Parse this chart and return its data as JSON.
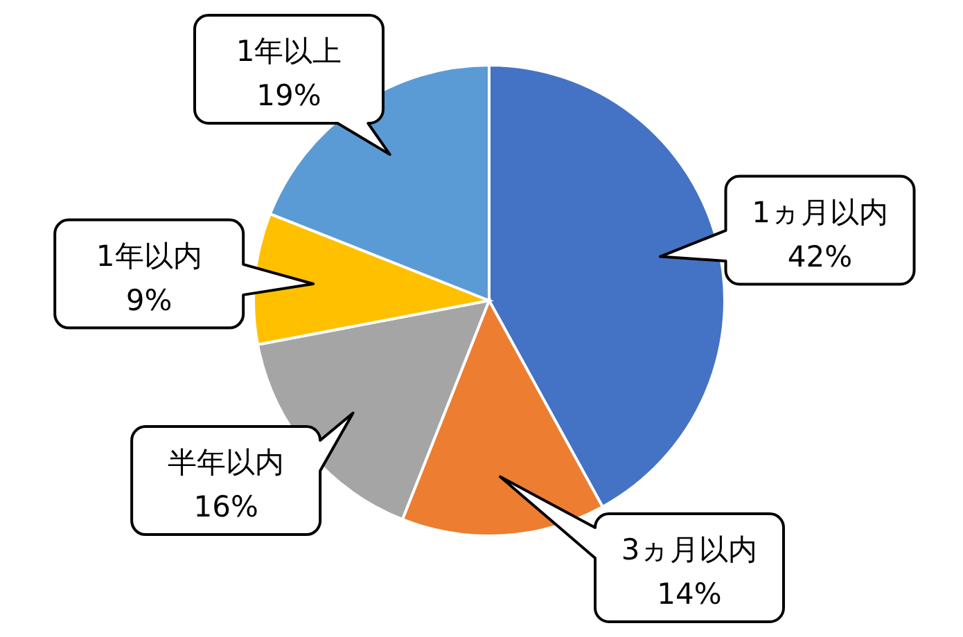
{
  "chart_data": {
    "type": "pie",
    "categories": [
      "1ヵ月以内",
      "3ヵ月以内",
      "半年以内",
      "1年以内",
      "1年以上"
    ],
    "values": [
      42,
      14,
      16,
      9,
      19
    ],
    "colors": [
      "#4472c4",
      "#ed7d31",
      "#a5a5a5",
      "#ffc000",
      "#5b9bd5"
    ],
    "value_labels": [
      "42%",
      "14%",
      "16%",
      "9%",
      "19%"
    ]
  }
}
